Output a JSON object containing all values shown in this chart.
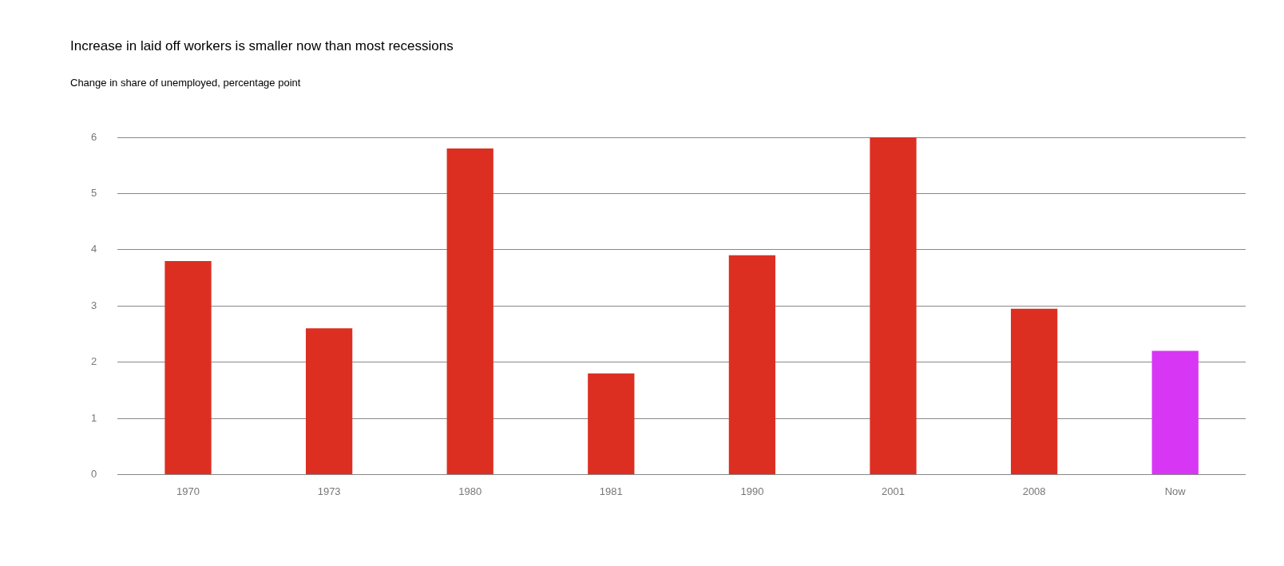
{
  "chart_data": {
    "type": "bar",
    "title": "Increase in laid off workers is smaller now than most recessions",
    "subtitle": "Change in share of unemployed, percentage point",
    "categories": [
      "1970",
      "1973",
      "1980",
      "1981",
      "1990",
      "2001",
      "2008",
      "Now"
    ],
    "values": [
      3.8,
      2.6,
      5.8,
      1.8,
      3.9,
      6.0,
      2.95,
      2.2
    ],
    "colors": [
      "#dc2f22",
      "#dc2f22",
      "#dc2f22",
      "#dc2f22",
      "#dc2f22",
      "#dc2f22",
      "#dc2f22",
      "#d836f5"
    ],
    "ylim": [
      0,
      6
    ],
    "yticks": [
      0,
      1,
      2,
      3,
      4,
      5,
      6
    ],
    "grid": "y",
    "legend": false
  }
}
